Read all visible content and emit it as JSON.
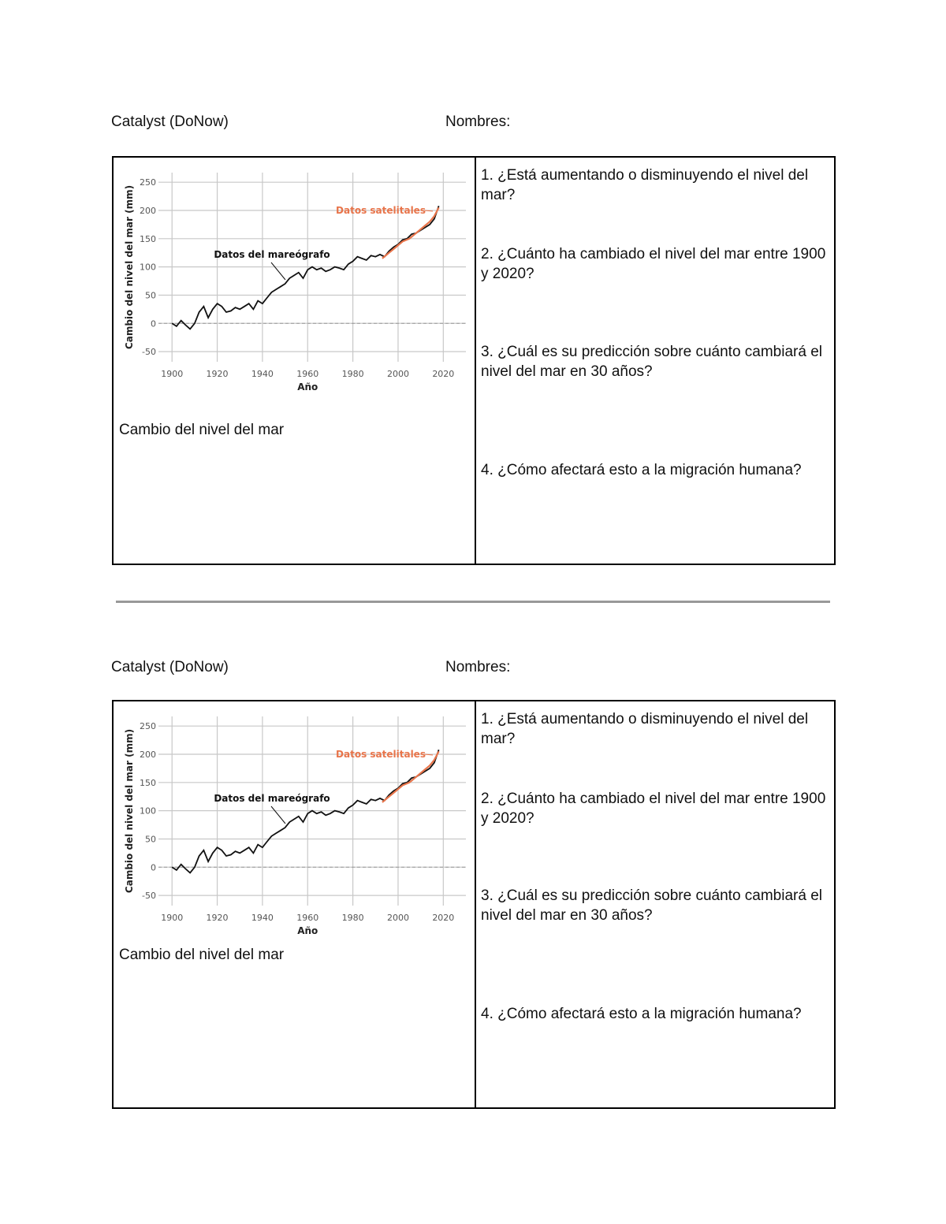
{
  "sections": [
    {
      "header": {
        "title": "Catalyst (DoNow)",
        "names": "Nombres:"
      },
      "chart_data": {
        "type": "line",
        "xlabel": "Año",
        "ylabel": "Cambio del nivel del mar (mm)",
        "xlim": [
          1894,
          2030
        ],
        "ylim": [
          -68,
          267
        ],
        "xticks": [
          1900,
          1920,
          1940,
          1960,
          1980,
          2000,
          2020
        ],
        "yticks": [
          -50,
          0,
          50,
          100,
          150,
          200,
          250
        ],
        "grid": true,
        "zero_line": true,
        "series": [
          {
            "name": "Datos del mareógrafo",
            "color": "#111111",
            "x": [
              1900,
              1902,
              1904,
              1906,
              1908,
              1910,
              1912,
              1914,
              1916,
              1918,
              1920,
              1922,
              1924,
              1926,
              1928,
              1930,
              1932,
              1934,
              1936,
              1938,
              1940,
              1942,
              1944,
              1946,
              1948,
              1950,
              1952,
              1954,
              1956,
              1958,
              1960,
              1962,
              1964,
              1966,
              1968,
              1970,
              1972,
              1974,
              1976,
              1978,
              1980,
              1982,
              1984,
              1986,
              1988,
              1990,
              1992,
              1994,
              1996,
              1998,
              2000,
              2002,
              2004,
              2006,
              2008,
              2010,
              2012,
              2014,
              2016,
              2018
            ],
            "values": [
              0,
              -5,
              5,
              -3,
              -10,
              0,
              20,
              30,
              10,
              25,
              35,
              30,
              20,
              22,
              28,
              25,
              30,
              35,
              25,
              40,
              35,
              45,
              55,
              60,
              65,
              70,
              80,
              85,
              90,
              80,
              95,
              100,
              95,
              98,
              92,
              95,
              100,
              98,
              95,
              105,
              110,
              118,
              115,
              112,
              120,
              118,
              122,
              118,
              128,
              135,
              140,
              148,
              150,
              158,
              160,
              165,
              170,
              175,
              185,
              208
            ]
          },
          {
            "name": "Datos satelitales",
            "color": "#e8744a",
            "x": [
              1993,
              1996,
              1999,
              2002,
              2005,
              2008,
              2011,
              2014,
              2016,
              2018
            ],
            "values": [
              115,
              125,
              135,
              145,
              150,
              160,
              170,
              180,
              190,
              205
            ]
          }
        ]
      },
      "caption": "Cambio del nivel del mar",
      "questions": [
        "1. ¿Está aumentando o disminuyendo el nivel del mar?",
        "2. ¿Cuánto ha cambiado el nivel del mar entre 1900 y 2020?",
        "3. ¿Cuál es su predicción sobre cuánto cambiará el nivel del mar en 30 años?",
        "4. ¿Cómo afectará esto a la migración humana?"
      ]
    },
    {
      "header": {
        "title": "Catalyst (DoNow)",
        "names": "Nombres:"
      },
      "chart_data": {
        "type": "line",
        "xlabel": "Año",
        "ylabel": "Cambio del nivel del mar (mm)",
        "xlim": [
          1894,
          2030
        ],
        "ylim": [
          -68,
          267
        ],
        "xticks": [
          1900,
          1920,
          1940,
          1960,
          1980,
          2000,
          2020
        ],
        "yticks": [
          -50,
          0,
          50,
          100,
          150,
          200,
          250
        ],
        "grid": true,
        "zero_line": true,
        "series": [
          {
            "name": "Datos del mareógrafo",
            "color": "#111111",
            "x": [
              1900,
              1902,
              1904,
              1906,
              1908,
              1910,
              1912,
              1914,
              1916,
              1918,
              1920,
              1922,
              1924,
              1926,
              1928,
              1930,
              1932,
              1934,
              1936,
              1938,
              1940,
              1942,
              1944,
              1946,
              1948,
              1950,
              1952,
              1954,
              1956,
              1958,
              1960,
              1962,
              1964,
              1966,
              1968,
              1970,
              1972,
              1974,
              1976,
              1978,
              1980,
              1982,
              1984,
              1986,
              1988,
              1990,
              1992,
              1994,
              1996,
              1998,
              2000,
              2002,
              2004,
              2006,
              2008,
              2010,
              2012,
              2014,
              2016,
              2018
            ],
            "values": [
              0,
              -5,
              5,
              -3,
              -10,
              0,
              20,
              30,
              10,
              25,
              35,
              30,
              20,
              22,
              28,
              25,
              30,
              35,
              25,
              40,
              35,
              45,
              55,
              60,
              65,
              70,
              80,
              85,
              90,
              80,
              95,
              100,
              95,
              98,
              92,
              95,
              100,
              98,
              95,
              105,
              110,
              118,
              115,
              112,
              120,
              118,
              122,
              118,
              128,
              135,
              140,
              148,
              150,
              158,
              160,
              165,
              170,
              175,
              185,
              208
            ]
          },
          {
            "name": "Datos satelitales",
            "color": "#e8744a",
            "x": [
              1993,
              1996,
              1999,
              2002,
              2005,
              2008,
              2011,
              2014,
              2016,
              2018
            ],
            "values": [
              115,
              125,
              135,
              145,
              150,
              160,
              170,
              180,
              190,
              205
            ]
          }
        ]
      },
      "caption": "Cambio del nivel del mar",
      "questions": [
        "1. ¿Está aumentando o disminuyendo el nivel del mar?",
        "2. ¿Cuánto ha cambiado el nivel del mar entre 1900 y 2020?",
        "3. ¿Cuál es su predicción sobre cuánto cambiará el nivel del mar en 30 años?",
        "4. ¿Cómo afectará esto a la migración humana?"
      ]
    }
  ]
}
